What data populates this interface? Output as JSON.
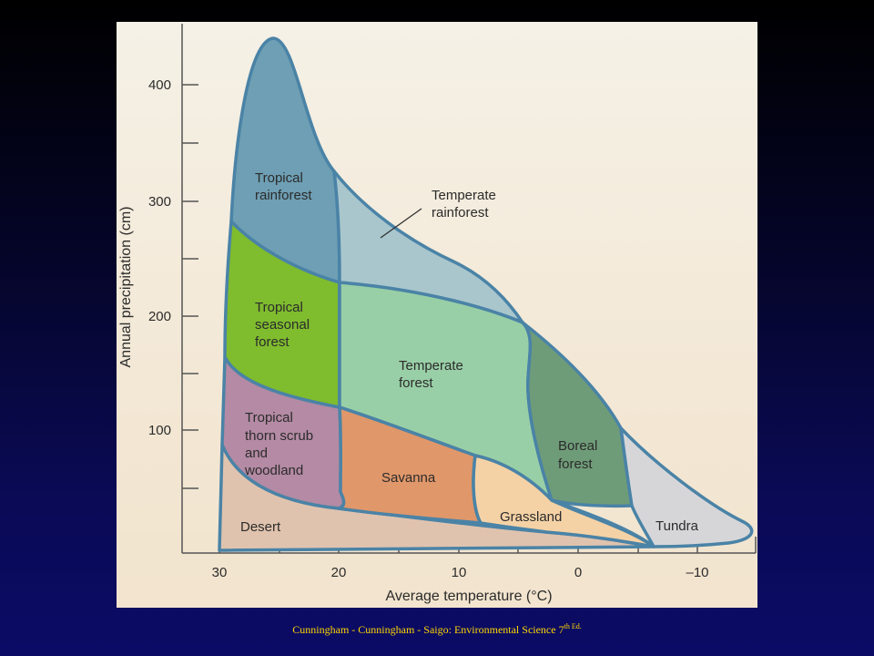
{
  "diagram": {
    "biomes": {
      "tropical_rainforest": [
        "Tropical",
        "rainforest"
      ],
      "temperate_rainforest": [
        "Temperate",
        "rainforest"
      ],
      "tropical_seasonal_forest": [
        "Tropical",
        "seasonal",
        "forest"
      ],
      "temperate_forest": [
        "Temperate",
        "forest"
      ],
      "tropical_thorn_scrub": [
        "Tropical",
        "thorn scrub",
        "and",
        "woodland"
      ],
      "savanna": [
        "Savanna"
      ],
      "boreal_forest": [
        "Boreal",
        "forest"
      ],
      "grassland": [
        "Grassland"
      ],
      "desert": [
        "Desert"
      ],
      "tundra": [
        "Tundra"
      ]
    },
    "colors": {
      "background": "#f3ecd9",
      "outline": "#4a83a6",
      "tropical_rainforest": "#6e9fb4",
      "temperate_rainforest": "#a9c6cd",
      "tropical_seasonal_forest": "#7fbc2e",
      "temperate_forest": "#99cfa6",
      "tropical_thorn_scrub": "#b48aa4",
      "savanna": "#e0976a",
      "boreal_forest": "#6f9c78",
      "grassland": "#f5d2a5",
      "desert": "#e0c3ae",
      "tundra": "#d6d6d9"
    },
    "y_axis": {
      "title": "Annual precipitation (cm)",
      "ticks": [
        "400",
        "300",
        "200",
        "100"
      ]
    },
    "x_axis": {
      "title": "Average temperature (°C)",
      "ticks": [
        "30",
        "20",
        "10",
        "0",
        "–10"
      ]
    }
  },
  "credit": {
    "text": "Cunningham - Cunningham - Saigo: Environmental Science 7",
    "sup": "th Ed."
  }
}
